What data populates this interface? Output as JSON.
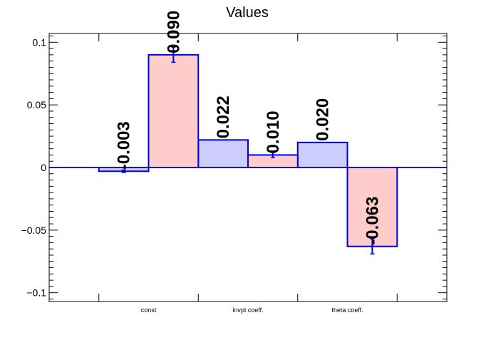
{
  "chart_data": {
    "type": "bar",
    "title": "Values",
    "xlabel": "",
    "ylabel": "",
    "categories": [
      "const",
      "invpt coeff.",
      "theta coeff."
    ],
    "ylim": [
      -0.107,
      0.107
    ],
    "yticks": [
      {
        "value": 0.1,
        "label": "0.1"
      },
      {
        "value": 0.05,
        "label": "0.05"
      },
      {
        "value": 0,
        "label": "0"
      },
      {
        "value": -0.05,
        "label": "−0.05"
      },
      {
        "value": -0.1,
        "label": "−0.1"
      }
    ],
    "series": [
      {
        "color": "#ccccff",
        "values": [
          -0.003,
          0.022,
          0.02
        ],
        "errors": [
          0.001,
          0.0,
          0.0
        ],
        "labels": [
          "-0.003",
          "0.022",
          "0.020"
        ]
      },
      {
        "color": "#ffcccc",
        "values": [
          0.09,
          0.01,
          -0.063
        ],
        "errors": [
          0.006,
          0.002,
          0.006
        ],
        "labels": [
          "0.090",
          "0.010",
          "-0.063"
        ]
      }
    ],
    "bar_edge_color": "#0000dd",
    "zero_line": true,
    "grid": false,
    "legend": "none"
  }
}
